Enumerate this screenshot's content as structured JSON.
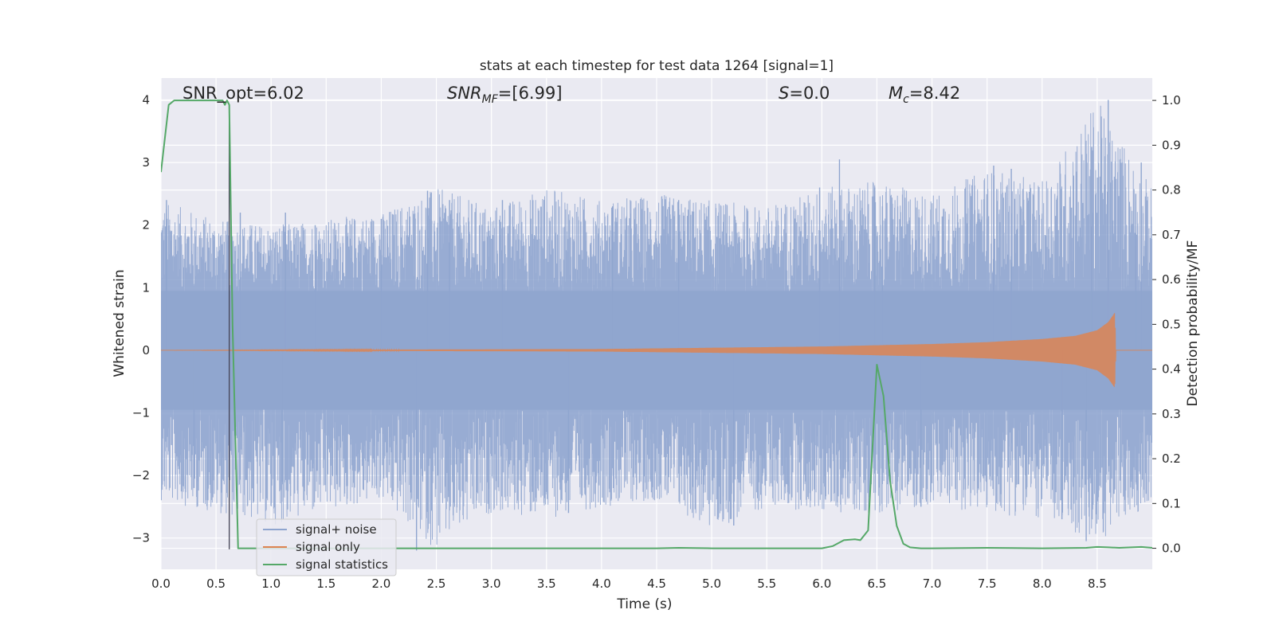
{
  "chart_data": {
    "type": "line",
    "title": "stats at each timestep for test data 1264 [signal=1]",
    "xlabel": "Time (s)",
    "ylabel_left": "Whitened strain",
    "ylabel_right": "Detection probability/MF",
    "xlim": [
      0.0,
      9.0
    ],
    "ylim_left": [
      -3.5,
      4.35
    ],
    "ylim_right": [
      -0.047,
      1.05
    ],
    "x_ticks": [
      "0.0",
      "0.5",
      "1.0",
      "1.5",
      "2.0",
      "2.5",
      "3.0",
      "3.5",
      "4.0",
      "4.5",
      "5.0",
      "5.5",
      "6.0",
      "6.5",
      "7.0",
      "7.5",
      "8.0",
      "8.5"
    ],
    "y_left_ticks": [
      "−3",
      "−2",
      "−1",
      "0",
      "1",
      "2",
      "3",
      "4"
    ],
    "y_right_ticks": [
      "0.0",
      "0.1",
      "0.2",
      "0.3",
      "0.4",
      "0.5",
      "0.6",
      "0.7",
      "0.8",
      "0.9",
      "1.0"
    ],
    "grid": true,
    "legend_position": "lower-left",
    "annotations": {
      "snr_opt": "SNR_opt=6.02",
      "snr_mf_main": "SNR",
      "snr_mf_sub": "MF",
      "snr_mf_val": "=[6.99]",
      "s_main": "S",
      "s_val": "=0.0",
      "mc_main": "M",
      "mc_sub": "c",
      "mc_val": "=8.42"
    },
    "series": [
      {
        "name": "signal+ noise",
        "color": "#8fa5cf",
        "axis": "left",
        "style": "dense noise band",
        "envelope": {
          "x": [
            0.0,
            0.5,
            1.0,
            1.5,
            2.0,
            2.5,
            3.0,
            3.5,
            4.0,
            4.5,
            5.0,
            5.5,
            6.0,
            6.5,
            7.0,
            7.5,
            8.0,
            8.5,
            9.0
          ],
          "upper": [
            2.4,
            2.1,
            2.0,
            2.1,
            2.2,
            2.6,
            2.3,
            2.6,
            2.4,
            2.5,
            2.4,
            2.3,
            2.6,
            2.7,
            2.5,
            2.9,
            2.7,
            4.0,
            2.6
          ],
          "lower": [
            -2.4,
            -2.6,
            -2.8,
            -2.6,
            -2.4,
            -3.2,
            -2.6,
            -2.7,
            -2.5,
            -2.4,
            -2.9,
            -2.5,
            -2.6,
            -2.6,
            -2.5,
            -2.6,
            -2.7,
            -3.1,
            -2.4
          ]
        },
        "spikes": [
          {
            "x": 0.05,
            "y": 2.4
          },
          {
            "x": 0.3,
            "y": -2.2
          },
          {
            "x": 0.72,
            "y": 2.2
          },
          {
            "x": 1.1,
            "y": -2.1
          },
          {
            "x": 1.13,
            "y": 2.2
          },
          {
            "x": 1.4,
            "y": 2.0
          },
          {
            "x": 2.0,
            "y": 2.1
          },
          {
            "x": 2.32,
            "y": -3.2
          },
          {
            "x": 2.42,
            "y": 2.55
          },
          {
            "x": 2.62,
            "y": 2.4
          },
          {
            "x": 3.1,
            "y": 2.4
          },
          {
            "x": 3.7,
            "y": -2.6
          },
          {
            "x": 4.1,
            "y": 2.3
          },
          {
            "x": 4.7,
            "y": 2.4
          },
          {
            "x": 5.2,
            "y": -2.8
          },
          {
            "x": 5.98,
            "y": 2.6
          },
          {
            "x": 6.16,
            "y": 3.05
          },
          {
            "x": 6.48,
            "y": 2.6
          },
          {
            "x": 6.55,
            "y": 2.3
          },
          {
            "x": 6.9,
            "y": -2.5
          },
          {
            "x": 7.56,
            "y": 2.95
          },
          {
            "x": 7.72,
            "y": 2.9
          },
          {
            "x": 8.18,
            "y": -2.7
          },
          {
            "x": 8.45,
            "y": 3.25
          },
          {
            "x": 8.4,
            "y": -3.05
          },
          {
            "x": 8.6,
            "y": 4.0
          },
          {
            "x": 8.85,
            "y": 2.5
          },
          {
            "x": 8.9,
            "y": 3.0
          }
        ]
      },
      {
        "name": "signal only",
        "color": "#dd8452",
        "axis": "left",
        "style": "chirp",
        "envelope": {
          "x": [
            0.0,
            4.0,
            5.0,
            6.0,
            6.5,
            7.0,
            7.5,
            8.0,
            8.3,
            8.5,
            8.6,
            8.66,
            8.67,
            9.0
          ],
          "amp": [
            0.0,
            0.02,
            0.04,
            0.06,
            0.08,
            0.1,
            0.13,
            0.18,
            0.23,
            0.32,
            0.45,
            0.6,
            0.0,
            0.0
          ]
        }
      },
      {
        "name": "signal statistics",
        "color": "#55a868",
        "axis": "right",
        "style": "line",
        "x": [
          0.0,
          0.07,
          0.12,
          0.2,
          0.3,
          0.4,
          0.5,
          0.56,
          0.58,
          0.6,
          0.62,
          0.65,
          0.7,
          0.75,
          1.0,
          2.0,
          3.0,
          4.0,
          4.5,
          4.7,
          5.0,
          5.5,
          6.0,
          6.1,
          6.2,
          6.3,
          6.35,
          6.42,
          6.5,
          6.56,
          6.62,
          6.68,
          6.74,
          6.8,
          6.9,
          7.0,
          7.5,
          8.0,
          8.4,
          8.5,
          8.6,
          8.7,
          8.9,
          9.0
        ],
        "y": [
          0.84,
          0.99,
          1.0,
          1.0,
          1.0,
          1.0,
          1.0,
          1.0,
          0.99,
          1.0,
          0.99,
          0.5,
          0.0,
          0.0,
          0.0,
          0.0,
          0.0,
          0.0,
          0.0,
          0.001,
          0.0,
          0.0,
          0.0,
          0.005,
          0.018,
          0.02,
          0.018,
          0.04,
          0.41,
          0.34,
          0.15,
          0.05,
          0.01,
          0.002,
          0.0,
          0.0,
          0.001,
          0.0,
          0.001,
          0.003,
          0.002,
          0.001,
          0.003,
          0.001
        ]
      }
    ],
    "marker_line": {
      "x": 0.62,
      "y_top": 0.985,
      "y_bottom": -3.18,
      "color": "#444455"
    }
  },
  "legend": {
    "items": [
      {
        "label": "signal+ noise",
        "color": "#8fa5cf"
      },
      {
        "label": "signal only",
        "color": "#dd8452"
      },
      {
        "label": "signal statistics",
        "color": "#55a868"
      }
    ]
  }
}
